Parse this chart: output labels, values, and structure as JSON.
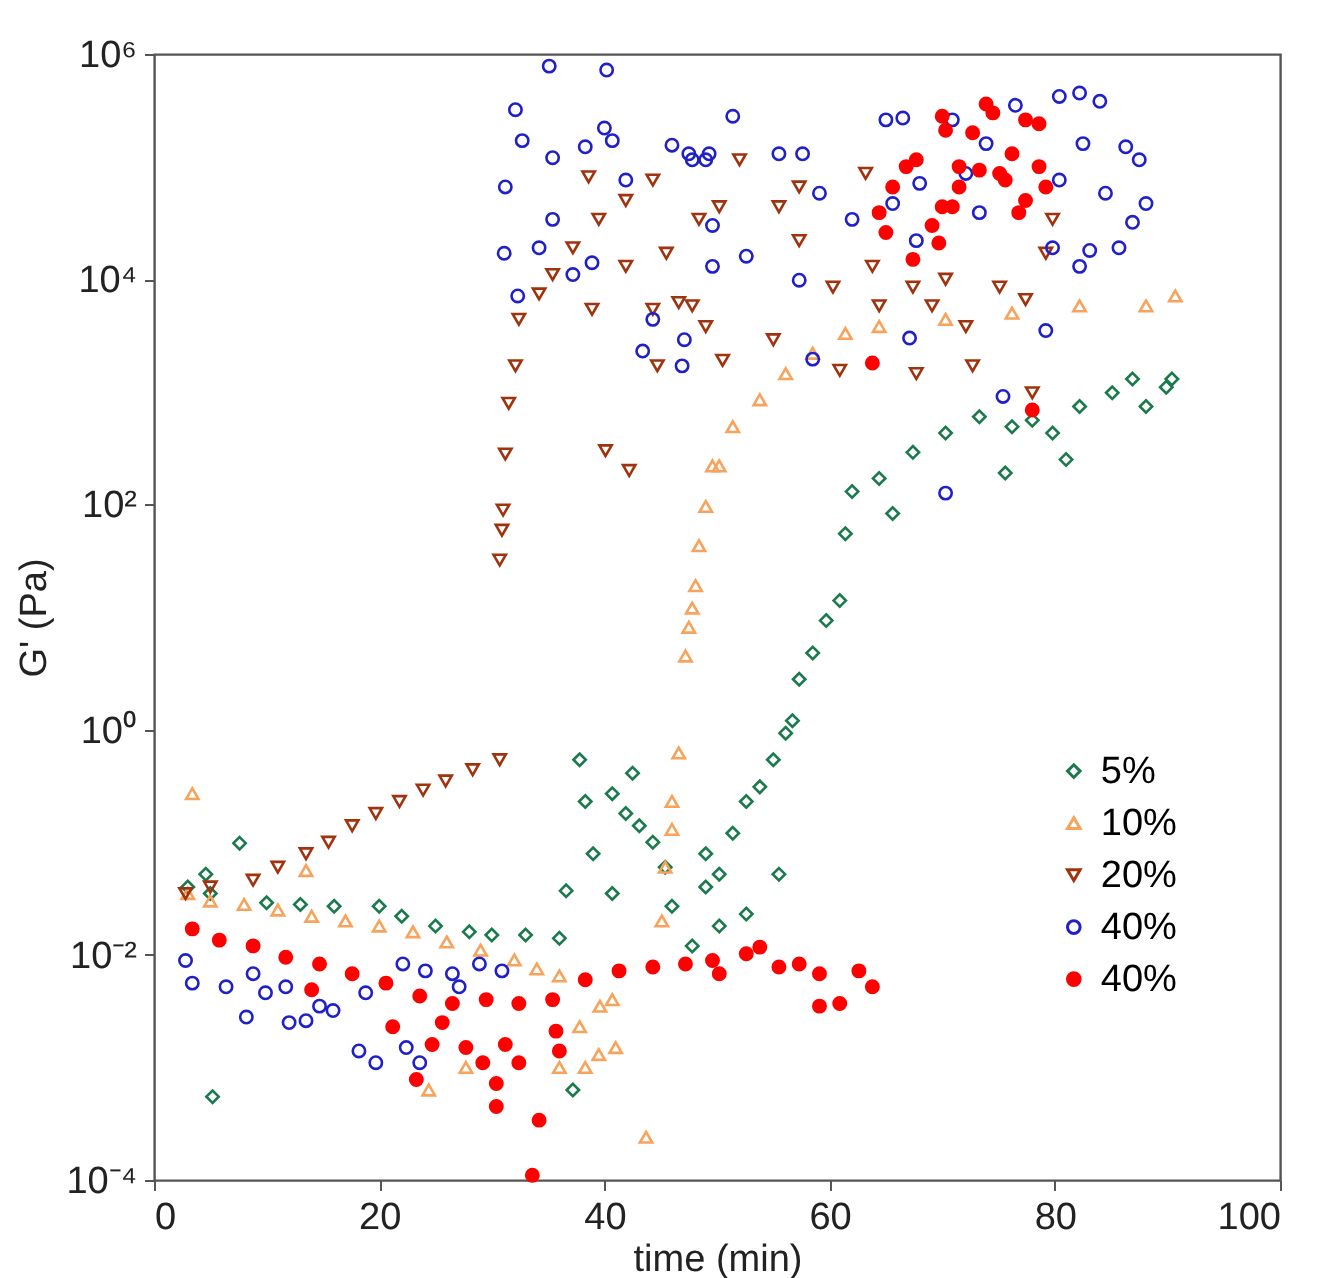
{
  "chart_data": {
    "type": "scatter",
    "xlabel": "time (min)",
    "ylabel": "G' (Pa)",
    "log": "y",
    "legend": "right",
    "xlim": [
      0,
      100
    ],
    "xticks": [
      0,
      20,
      40,
      60,
      80,
      100
    ],
    "ylim": [
      0.0001,
      1000000
    ],
    "yticks": [
      {
        "value": 0.0001,
        "label": "10⁻⁴"
      },
      {
        "value": 0.01,
        "label": "10⁻²"
      },
      {
        "value": 1,
        "label": "10⁰"
      },
      {
        "value": 100,
        "label": "10²"
      },
      {
        "value": 10000,
        "label": "10⁴"
      },
      {
        "value": 1000000,
        "label": "10⁶"
      }
    ],
    "series": [
      {
        "name": "5%",
        "color": "#1a7a4c",
        "marker": "diamond",
        "x": [
          3,
          5,
          4.6,
          5.2,
          7.6,
          10,
          13,
          16,
          20,
          22,
          25,
          28,
          30,
          33,
          36,
          36.6,
          37.2,
          37.8,
          38.3,
          39,
          40.7,
          40.7,
          41.9,
          42.5,
          43.1,
          44.3,
          45.4,
          46,
          47.8,
          49,
          49,
          50.2,
          50.2,
          51.4,
          52.6,
          52.6,
          53.8,
          55,
          55.5,
          56.1,
          56.7,
          57.3,
          58.5,
          59.7,
          60.9,
          61.4,
          62,
          64.4,
          65.6,
          67.4,
          70.3,
          73.3,
          75.6,
          76.2,
          78,
          79.8,
          81,
          82.2,
          85.1,
          86.9,
          88.1,
          89.9,
          90.4
        ],
        "values": [
          0.04,
          0.035,
          0.052,
          0.00055,
          0.098,
          0.029,
          0.028,
          0.027,
          0.027,
          0.022,
          0.018,
          0.016,
          0.015,
          0.015,
          0.014,
          0.037,
          0.00063,
          0.54,
          0.23,
          0.079,
          0.27,
          0.035,
          0.18,
          0.41,
          0.14,
          0.1,
          0.06,
          0.027,
          0.012,
          0.079,
          0.04,
          0.052,
          0.018,
          0.12,
          0.23,
          0.023,
          0.31,
          0.54,
          0.052,
          0.93,
          1.2,
          2.8,
          4.8,
          9.3,
          14,
          55,
          130,
          170,
          83,
          290,
          430,
          600,
          190,
          490,
          560,
          430,
          250,
          740,
          980,
          1300,
          740,
          1100,
          1300
        ]
      },
      {
        "name": "10%",
        "color": "#f7a35c",
        "marker": "triangle",
        "x": [
          3,
          5,
          8,
          11,
          14,
          17,
          20,
          23,
          26,
          29,
          32,
          34,
          36,
          3.4,
          13.5,
          24.4,
          27.7,
          37.8,
          39.6,
          40.7,
          38.3,
          41,
          43.7,
          45.1,
          46.6,
          46,
          46,
          45.4,
          47.2,
          47.5,
          47.8,
          48.1,
          48.4,
          49,
          49.6,
          50.2,
          51.4,
          53.8,
          56.1,
          58.5,
          61.4,
          64.4,
          70.3,
          76.2,
          82.2,
          88.1,
          90.7,
          39.5,
          36
        ],
        "values": [
          0.035,
          0.03,
          0.028,
          0.025,
          0.022,
          0.02,
          0.018,
          0.016,
          0.013,
          0.011,
          0.009,
          0.0075,
          0.0065,
          0.27,
          0.056,
          0.00063,
          0.001,
          0.0023,
          0.0035,
          0.004,
          0.001,
          0.0015,
          0.00024,
          0.02,
          0.62,
          0.23,
          0.13,
          0.06,
          4.5,
          8.1,
          12,
          19,
          43,
          96,
          220,
          220,
          490,
          850,
          1450,
          2200,
          3300,
          3800,
          4400,
          5000,
          5800,
          5800,
          7100,
          0.0013,
          0.001
        ]
      },
      {
        "name": "20%",
        "color": "#a0330e",
        "marker": "triangle",
        "x": [
          2.8,
          5,
          8.8,
          11,
          13.5,
          15.5,
          17.6,
          19.7,
          21.8,
          23.9,
          25.9,
          28.3,
          30.7,
          30.7,
          30.9,
          31,
          31.2,
          31.5,
          32.1,
          32.4,
          34.2,
          35.4,
          37.2,
          39.5,
          41.9,
          44.3,
          38.6,
          40.1,
          42.2,
          38.9,
          44.3,
          44.7,
          41.9,
          46.6,
          49,
          45.5,
          48.4,
          52,
          55.5,
          57.3,
          60.3,
          63.2,
          63.8,
          64.4,
          67.4,
          69.1,
          70.3,
          72.1,
          72.7,
          75.1,
          77.4,
          78,
          79.2,
          79.8,
          50.2,
          55,
          60.9,
          67.7,
          57.3,
          47.8,
          50.5
        ],
        "values": [
          0.035,
          0.04,
          0.046,
          0.06,
          0.079,
          0.1,
          0.14,
          0.18,
          0.23,
          0.29,
          0.35,
          0.44,
          0.54,
          32,
          59,
          89,
          280,
          790,
          1700,
          4400,
          7400,
          11000,
          19000,
          34000,
          50000,
          76000,
          81000,
          300,
          200,
          5400,
          5400,
          1700,
          13000,
          6200,
          3800,
          17000,
          34000,
          115000,
          44000,
          22000,
          8500,
          87000,
          13000,
          5800,
          8500,
          5800,
          10000,
          3800,
          1700,
          8500,
          6600,
          980,
          17000,
          34000,
          44000,
          2900,
          1550,
          1450,
          66000,
          5800,
          1900
        ]
      },
      {
        "name": "40%",
        "color": "#2020c8",
        "marker": "circle",
        "x": [
          2.8,
          3.4,
          6.4,
          8.2,
          9.9,
          12,
          13.5,
          14.7,
          15.9,
          18.2,
          19.7,
          22.4,
          23.6,
          22.1,
          24.1,
          26.5,
          28.9,
          30.9,
          11.7,
          18.8,
          27.1,
          8.8,
          35.1,
          40.2,
          32.1,
          32.7,
          31.2,
          31.1,
          32.3,
          34.2,
          35.4,
          38.3,
          40,
          40.7,
          44.3,
          43.4,
          46.9,
          47.1,
          37.2,
          46,
          47.8,
          49.3,
          41.9,
          35.4,
          38.9,
          49.6,
          51.4,
          47.5,
          49,
          49.6,
          52.6,
          55.5,
          57.6,
          57.3,
          59.1,
          62,
          65.6,
          65,
          66.5,
          67.1,
          58.5,
          67.7,
          70.9,
          73.9,
          76.5,
          75.4,
          70.3,
          79.2,
          80.4,
          82.2,
          84,
          82.5,
          86.3,
          87.5,
          88.1,
          86.9,
          85.7,
          83.1,
          82.2,
          84.5,
          80.4,
          73.3,
          72.1,
          68,
          79.8
        ],
        "values": [
          0.0089,
          0.0056,
          0.0052,
          0.0028,
          0.0046,
          0.0025,
          0.0026,
          0.0035,
          0.0032,
          0.0014,
          0.0011,
          0.0015,
          0.0011,
          0.0083,
          0.0072,
          0.0068,
          0.0083,
          0.0072,
          0.0052,
          0.0046,
          0.0052,
          0.0068,
          780000,
          720000,
          320000,
          170000,
          66000,
          17000,
          7100,
          19000,
          120000,
          150000,
          220000,
          170000,
          4400,
          2300,
          1700,
          2900,
          11000,
          155000,
          115000,
          130000,
          76000,
          34000,
          14000,
          13000,
          280000,
          130000,
          115000,
          30000,
          16000,
          130000,
          130000,
          9800,
          58000,
          34000,
          47000,
          260000,
          270000,
          3000,
          1950,
          22000,
          260000,
          160000,
          350000,
          910,
          126,
          3500,
          420000,
          450000,
          380000,
          160000,
          150000,
          115000,
          47000,
          32000,
          19000,
          18000,
          13000,
          58000,
          76000,
          39000,
          87000,
          71000,
          19000
        ]
      },
      {
        "name": "40%",
        "color": "#ff0000",
        "marker": "circle",
        "x": [
          3.4,
          5.8,
          8.8,
          11.7,
          14.7,
          17.6,
          20.6,
          23.6,
          26.5,
          29.5,
          32.4,
          35.4,
          38.3,
          41.3,
          44.3,
          47.2,
          50.2,
          49.6,
          52.6,
          53.8,
          55.5,
          57.3,
          59.1,
          59.1,
          60.9,
          62.6,
          63.8,
          14,
          21.2,
          23.3,
          24.7,
          27.7,
          29.2,
          30.4,
          30.4,
          31.2,
          32.4,
          33.6,
          34.2,
          35.7,
          36,
          25.6,
          63.8,
          78,
          64.4,
          65,
          65.6,
          66.8,
          67.4,
          69.1,
          69.7,
          70,
          70.3,
          70.9,
          71.5,
          72.7,
          73.3,
          73.9,
          74.5,
          75.1,
          75.6,
          76.2,
          76.8,
          77.4,
          78.6,
          78.6,
          79.2,
          77.4,
          67.7,
          70,
          71.5
        ],
        "values": [
          0.017,
          0.0135,
          0.012,
          0.0095,
          0.0083,
          0.0068,
          0.0056,
          0.0043,
          0.0037,
          0.004,
          0.0037,
          0.004,
          0.006,
          0.0072,
          0.0078,
          0.0083,
          0.0068,
          0.0089,
          0.0102,
          0.0117,
          0.0078,
          0.0083,
          0.0068,
          0.0035,
          0.0037,
          0.0072,
          0.0052,
          0.0049,
          0.0023,
          0.00078,
          0.0016,
          0.0015,
          0.0011,
          0.00072,
          0.00045,
          0.0016,
          0.0011,
          0.00011,
          0.00034,
          0.0021,
          0.0014,
          0.0025,
          1800,
          690,
          39000,
          26000,
          66000,
          100000,
          15000,
          30000,
          21000,
          280000,
          210000,
          44000,
          66000,
          200000,
          93000,
          360000,
          300000,
          87000,
          76000,
          130000,
          39000,
          260000,
          240000,
          100000,
          66000,
          50000,
          115000,
          44000,
          100000
        ]
      }
    ]
  }
}
